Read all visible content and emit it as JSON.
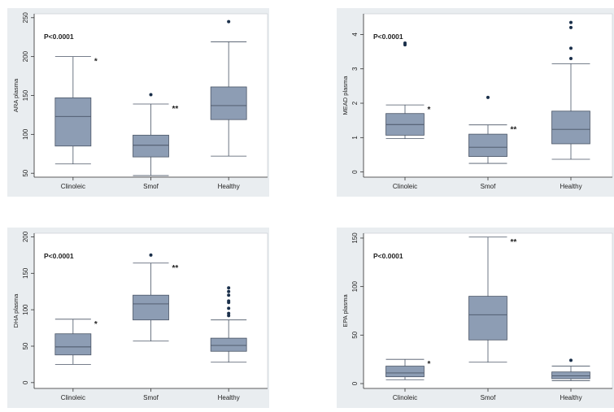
{
  "colors": {
    "panel_bg": "#e9edf0",
    "plot_bg": "#ffffff",
    "box_fill": "#8d9db4",
    "box_stroke": "#4a5566",
    "whisker": "#4a5566",
    "outlier": "#1a2f4a",
    "text": "#222222"
  },
  "chart_data": [
    {
      "type": "box",
      "ylabel": "ARA plasma",
      "pvalue_label": "P<0.0001",
      "yticks": [
        50,
        100,
        150,
        200,
        250
      ],
      "ylim": [
        45,
        255
      ],
      "categories": [
        "Clinoleic",
        "Smof",
        "Healthy"
      ],
      "boxes": [
        {
          "category": "Clinoleic",
          "min": 62,
          "q1": 85,
          "median": 123,
          "q3": 147,
          "max": 200,
          "outliers": [],
          "marker": "*"
        },
        {
          "category": "Smof",
          "min": 47,
          "q1": 71,
          "median": 86,
          "q3": 99,
          "max": 139,
          "outliers": [
            151
          ],
          "marker": "**"
        },
        {
          "category": "Healthy",
          "min": 72,
          "q1": 119,
          "median": 137,
          "q3": 161,
          "max": 219,
          "outliers": [
            245
          ],
          "marker": ""
        }
      ]
    },
    {
      "type": "box",
      "ylabel": "MEAD plasma",
      "pvalue_label": "P<0.0001",
      "yticks": [
        0,
        1,
        2,
        3,
        4
      ],
      "ylim": [
        -0.15,
        4.6
      ],
      "categories": [
        "Clinoleic",
        "Smof",
        "Healthy"
      ],
      "boxes": [
        {
          "category": "Clinoleic",
          "min": 0.97,
          "q1": 1.07,
          "median": 1.38,
          "q3": 1.7,
          "max": 1.95,
          "outliers": [
            3.7,
            3.75
          ],
          "marker": "*"
        },
        {
          "category": "Smof",
          "min": 0.25,
          "q1": 0.45,
          "median": 0.72,
          "q3": 1.1,
          "max": 1.37,
          "outliers": [
            2.17
          ],
          "marker": "**"
        },
        {
          "category": "Healthy",
          "min": 0.37,
          "q1": 0.82,
          "median": 1.24,
          "q3": 1.77,
          "max": 3.15,
          "outliers": [
            3.3,
            3.6,
            4.2,
            4.35
          ],
          "marker": ""
        }
      ]
    },
    {
      "type": "box",
      "ylabel": "DHA plasma",
      "pvalue_label": "P<0.0001",
      "yticks": [
        0,
        50,
        100,
        150,
        200
      ],
      "ylim": [
        -8,
        205
      ],
      "categories": [
        "Clinoleic",
        "Smof",
        "Healthy"
      ],
      "boxes": [
        {
          "category": "Clinoleic",
          "min": 25,
          "q1": 38,
          "median": 49,
          "q3": 67,
          "max": 87,
          "outliers": [],
          "marker": "*"
        },
        {
          "category": "Smof",
          "min": 57,
          "q1": 86,
          "median": 108,
          "q3": 120,
          "max": 164,
          "outliers": [
            175
          ],
          "marker": "**"
        },
        {
          "category": "Healthy",
          "min": 28,
          "q1": 43,
          "median": 51,
          "q3": 61,
          "max": 86,
          "outliers": [
            92,
            95,
            102,
            110,
            112,
            120,
            125,
            130
          ],
          "marker": ""
        }
      ]
    },
    {
      "type": "box",
      "ylabel": "EPA plasma",
      "pvalue_label": "P<0.0001",
      "yticks": [
        0,
        50,
        100,
        150
      ],
      "ylim": [
        -5,
        155
      ],
      "categories": [
        "Clinoleic",
        "Smof",
        "Healthy"
      ],
      "boxes": [
        {
          "category": "Clinoleic",
          "min": 4,
          "q1": 7,
          "median": 11,
          "q3": 18,
          "max": 25,
          "outliers": [],
          "marker": "*"
        },
        {
          "category": "Smof",
          "min": 22,
          "q1": 45,
          "median": 71,
          "q3": 90,
          "max": 151,
          "outliers": [],
          "marker": "**"
        },
        {
          "category": "Healthy",
          "min": 3,
          "q1": 5,
          "median": 8,
          "q3": 12,
          "max": 18,
          "outliers": [
            24
          ],
          "marker": ""
        }
      ]
    }
  ]
}
